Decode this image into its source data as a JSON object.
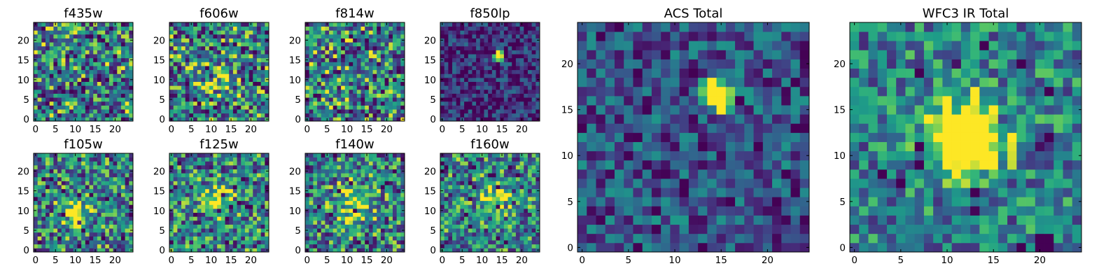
{
  "chart_data": {
    "type": "heatmap",
    "colormap": "viridis",
    "panels": [
      {
        "id": "f435w",
        "title": "f435w",
        "seed": 11,
        "noise": 1.0,
        "blobs": []
      },
      {
        "id": "f606w",
        "title": "f606w",
        "seed": 23,
        "noise": 1.0,
        "blobs": [
          {
            "cx": 12,
            "cy": 10,
            "sigma": 3,
            "amp": 0.25
          }
        ]
      },
      {
        "id": "f814w",
        "title": "f814w",
        "seed": 37,
        "noise": 1.0,
        "blobs": []
      },
      {
        "id": "f850lp",
        "title": "f850lp",
        "seed": 41,
        "noise": 0.55,
        "bias": -0.35,
        "blobs": [
          {
            "cx": 14,
            "cy": 16,
            "sigma": 0.8,
            "amp": 1.9
          }
        ]
      },
      {
        "id": "f105w",
        "title": "f105w",
        "seed": 53,
        "noise": 0.9,
        "blobs": [
          {
            "cx": 10,
            "cy": 10,
            "sigma": 2.5,
            "amp": 0.5
          }
        ]
      },
      {
        "id": "f125w",
        "title": "f125w",
        "seed": 67,
        "noise": 0.9,
        "blobs": [
          {
            "cx": 12,
            "cy": 13,
            "sigma": 2.5,
            "amp": 0.5
          }
        ]
      },
      {
        "id": "f140w",
        "title": "f140w",
        "seed": 79,
        "noise": 0.9,
        "blobs": [
          {
            "cx": 12,
            "cy": 12,
            "sigma": 3,
            "amp": 0.45
          }
        ]
      },
      {
        "id": "f160w",
        "title": "f160w",
        "seed": 83,
        "noise": 0.9,
        "blobs": [
          {
            "cx": 13,
            "cy": 13,
            "sigma": 2.5,
            "amp": 0.5
          }
        ]
      },
      {
        "id": "acs-total",
        "title": "ACS Total",
        "seed": 97,
        "noise": 0.6,
        "bias": -0.2,
        "blobs": [
          {
            "cx": 14.5,
            "cy": 16.5,
            "sigma": 0.9,
            "amp": 2.2
          }
        ]
      },
      {
        "id": "wfc3-total",
        "title": "WFC3 IR Total",
        "seed": 101,
        "noise": 0.7,
        "blobs": [
          {
            "cx": 12,
            "cy": 12,
            "sigma": 2.6,
            "amp": 1.3
          }
        ],
        "darks": [
          {
            "x": 20,
            "y": 0
          },
          {
            "x": 20,
            "y": 1
          },
          {
            "x": 21,
            "y": 0
          },
          {
            "x": 21,
            "y": 1
          }
        ]
      }
    ],
    "grid_size": 25,
    "x_ticks": [
      0,
      5,
      10,
      15,
      20
    ],
    "y_ticks": [
      0,
      5,
      10,
      15,
      20
    ],
    "xlim": [
      0,
      25
    ],
    "ylim": [
      0,
      25
    ]
  }
}
